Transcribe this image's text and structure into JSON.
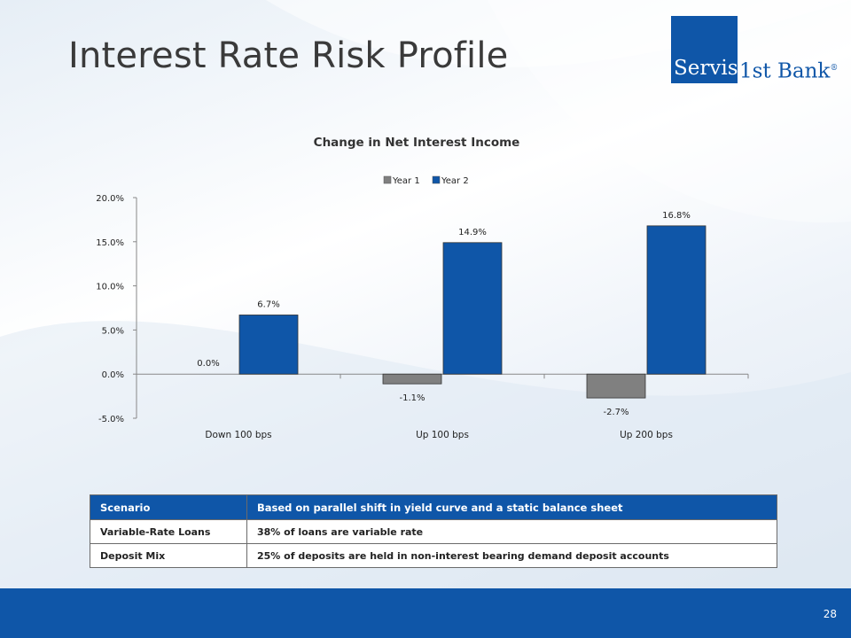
{
  "slide": {
    "title": "Interest Rate Risk Profile",
    "page_number": "28"
  },
  "logo": {
    "box_text": "Servis",
    "rest_text": "1st Bank",
    "reg_mark": "®",
    "color": "#0f56a8"
  },
  "chart_data": {
    "type": "bar",
    "title": "Change in Net Interest Income",
    "categories": [
      "Down 100 bps",
      "Up 100 bps",
      "Up 200 bps"
    ],
    "series": [
      {
        "name": "Year 1",
        "values": [
          0.0,
          -1.1,
          -2.7
        ],
        "labels": [
          "0.0%",
          "-1.1%",
          "-2.7%"
        ],
        "color": "#808080"
      },
      {
        "name": "Year 2",
        "values": [
          6.7,
          14.9,
          16.8
        ],
        "labels": [
          "6.7%",
          "14.9%",
          "16.8%"
        ],
        "color": "#0f56a8"
      }
    ],
    "ylim": [
      -5,
      20
    ],
    "yticks": [
      -5,
      0,
      5,
      10,
      15,
      20
    ],
    "ytick_labels": [
      "-5.0%",
      "0.0%",
      "5.0%",
      "10.0%",
      "15.0%",
      "20.0%"
    ],
    "legend_position": "top-center",
    "grid": false
  },
  "table": {
    "header": {
      "col1": "Scenario",
      "col2": "Based on parallel shift in yield curve and a static balance sheet"
    },
    "rows": [
      {
        "col1": "Variable-Rate Loans",
        "col2": "38% of loans are variable rate"
      },
      {
        "col1": "Deposit Mix",
        "col2": "25% of deposits are held in non-interest bearing demand deposit accounts"
      }
    ]
  }
}
